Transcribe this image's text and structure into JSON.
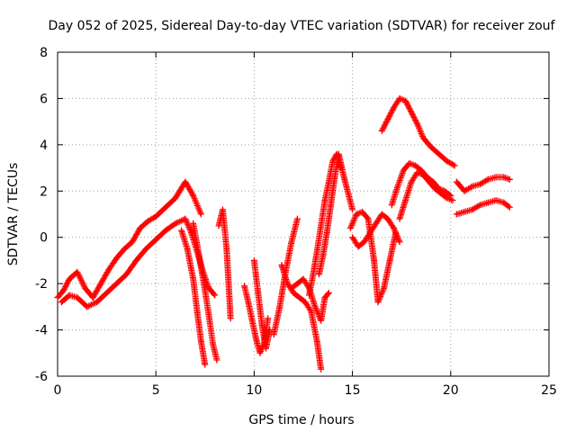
{
  "chart_data": {
    "type": "scatter",
    "title": "Day 052 of 2025, Sidereal Day-to-day VTEC variation (SDTVAR) for receiver zouf",
    "xlabel": "GPS time / hours",
    "ylabel": "SDTVAR / TECUs",
    "xlim": [
      0,
      25
    ],
    "ylim": [
      -6,
      8
    ],
    "x_ticks": [
      "0",
      "5",
      "10",
      "15",
      "20",
      "25"
    ],
    "y_ticks": [
      "-6",
      "-4",
      "-2",
      "0",
      "2",
      "4",
      "6",
      "8"
    ],
    "grid": true,
    "marker": "+",
    "color": "#ff0000",
    "series": [
      {
        "x": [
          0.0,
          0.3,
          0.6,
          1.0,
          1.4,
          1.8,
          2.2,
          2.6,
          3.0,
          3.4,
          3.8,
          4.2,
          4.6,
          5.0,
          5.5,
          6.0,
          6.5,
          6.9,
          7.3
        ],
        "y": [
          -2.6,
          -2.3,
          -1.8,
          -1.5,
          -2.2,
          -2.6,
          -2.0,
          -1.4,
          -0.9,
          -0.5,
          -0.2,
          0.4,
          0.7,
          0.9,
          1.3,
          1.7,
          2.4,
          1.8,
          1.0
        ]
      },
      {
        "x": [
          0.2,
          0.6,
          1.0,
          1.5,
          2.0,
          2.5,
          3.0,
          3.5,
          4.0,
          4.5,
          5.0,
          5.5,
          6.0,
          6.5,
          6.8,
          7.1,
          7.4,
          7.7,
          8.0
        ],
        "y": [
          -2.8,
          -2.5,
          -2.6,
          -3.0,
          -2.8,
          -2.4,
          -2.0,
          -1.6,
          -1.0,
          -0.5,
          -0.1,
          0.3,
          0.6,
          0.8,
          0.2,
          -0.6,
          -1.5,
          -2.2,
          -2.5
        ]
      },
      {
        "x": [
          6.3,
          6.6,
          6.9,
          7.1,
          7.3,
          7.5
        ],
        "y": [
          0.3,
          -0.5,
          -1.8,
          -3.2,
          -4.5,
          -5.5
        ]
      },
      {
        "x": [
          6.9,
          7.2,
          7.5,
          7.7,
          7.9,
          8.1
        ],
        "y": [
          0.6,
          -0.8,
          -2.3,
          -3.4,
          -4.6,
          -5.3
        ]
      },
      {
        "x": [
          8.2,
          8.4,
          8.6,
          8.8
        ],
        "y": [
          0.5,
          1.2,
          -0.5,
          -3.5
        ]
      },
      {
        "x": [
          9.5,
          9.7,
          9.9,
          10.1,
          10.3,
          10.5,
          10.7
        ],
        "y": [
          -2.1,
          -2.8,
          -3.6,
          -4.4,
          -5.0,
          -4.6,
          -3.5
        ]
      },
      {
        "x": [
          10.0,
          10.2,
          10.4,
          10.6,
          10.8
        ],
        "y": [
          -1.0,
          -2.4,
          -3.8,
          -4.8,
          -4.0
        ]
      },
      {
        "x": [
          11.0,
          11.3,
          11.6,
          11.9,
          12.2
        ],
        "y": [
          -4.2,
          -3.0,
          -1.5,
          -0.2,
          0.8
        ]
      },
      {
        "x": [
          11.4,
          11.7,
          12.0,
          12.3,
          12.6,
          12.9,
          13.2,
          13.4
        ],
        "y": [
          -1.2,
          -2.0,
          -2.4,
          -2.6,
          -2.8,
          -3.2,
          -4.5,
          -5.7
        ]
      },
      {
        "x": [
          11.9,
          12.2,
          12.5,
          12.8,
          13.1,
          13.4,
          13.6,
          13.8
        ],
        "y": [
          -2.2,
          -2.0,
          -1.8,
          -2.2,
          -3.0,
          -3.6,
          -2.6,
          -2.4
        ]
      },
      {
        "x": [
          12.8,
          13.0,
          13.2,
          13.4,
          13.6,
          13.8,
          14.0,
          14.2,
          14.4
        ],
        "y": [
          -2.5,
          -1.6,
          -0.6,
          0.5,
          1.6,
          2.4,
          3.3,
          3.6,
          3.0
        ]
      },
      {
        "x": [
          13.3,
          13.5,
          13.7,
          13.9,
          14.1,
          14.3,
          14.6,
          15.0
        ],
        "y": [
          -1.6,
          -0.8,
          0.2,
          1.4,
          2.6,
          3.6,
          2.5,
          1.2
        ]
      },
      {
        "x": [
          14.9,
          15.2,
          15.5,
          15.8,
          16.1,
          16.3,
          16.6,
          16.9,
          17.2
        ],
        "y": [
          0.4,
          1.0,
          1.1,
          0.8,
          -1.0,
          -2.8,
          -2.2,
          -1.0,
          0.2
        ]
      },
      {
        "x": [
          15.0,
          15.3,
          15.6,
          15.9,
          16.2,
          16.5,
          16.8,
          17.1,
          17.4
        ],
        "y": [
          0.0,
          -0.4,
          -0.2,
          0.2,
          0.6,
          1.0,
          0.8,
          0.4,
          -0.2
        ]
      },
      {
        "x": [
          16.5,
          16.8,
          17.1,
          17.4,
          17.7,
          18.0,
          18.3,
          18.6,
          19.0,
          19.4,
          19.8,
          20.2
        ],
        "y": [
          4.6,
          5.1,
          5.6,
          6.0,
          5.9,
          5.4,
          4.9,
          4.3,
          3.9,
          3.6,
          3.3,
          3.1
        ]
      },
      {
        "x": [
          17.0,
          17.3,
          17.6,
          17.9,
          18.2,
          18.5,
          18.8,
          19.1,
          19.4,
          19.7,
          20.0
        ],
        "y": [
          1.4,
          2.2,
          2.9,
          3.2,
          3.1,
          2.9,
          2.6,
          2.4,
          2.1,
          2.0,
          1.8
        ]
      },
      {
        "x": [
          17.4,
          17.7,
          18.0,
          18.3,
          18.6,
          18.9,
          19.2,
          19.5,
          19.8,
          20.1
        ],
        "y": [
          0.8,
          1.6,
          2.4,
          2.8,
          2.7,
          2.4,
          2.1,
          1.9,
          1.7,
          1.6
        ]
      },
      {
        "x": [
          20.3,
          20.7,
          21.1,
          21.5,
          21.9,
          22.3,
          22.7,
          23.0
        ],
        "y": [
          2.4,
          2.0,
          2.2,
          2.3,
          2.5,
          2.6,
          2.6,
          2.5
        ]
      },
      {
        "x": [
          20.3,
          20.7,
          21.1,
          21.5,
          21.9,
          22.3,
          22.7,
          23.0
        ],
        "y": [
          1.0,
          1.1,
          1.2,
          1.4,
          1.5,
          1.6,
          1.5,
          1.3
        ]
      }
    ]
  }
}
